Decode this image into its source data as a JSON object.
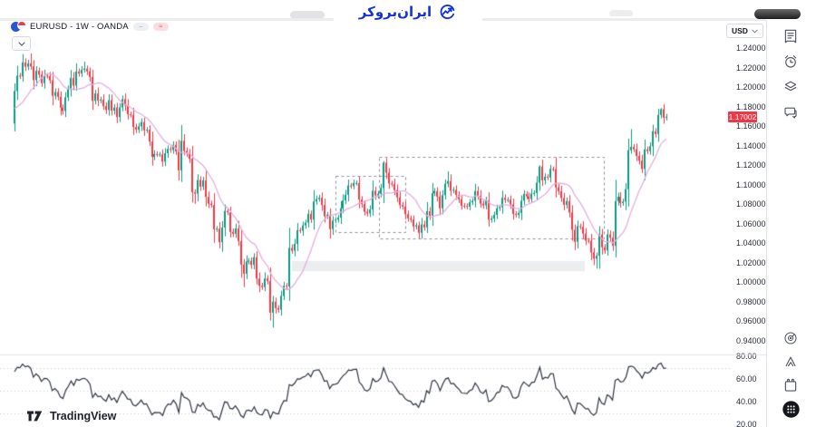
{
  "header": {
    "symbol_title": "EURUSD - 1W - OANDA",
    "brand_text": "ایران‌بروکر",
    "currency": "USD",
    "badges": [
      "–",
      "≈"
    ]
  },
  "footer": {
    "brand": "TradingView"
  },
  "price_axis": {
    "current_price": "1.17002",
    "labels": [
      "1.24000",
      "1.22000",
      "1.20000",
      "1.18000",
      "1.16000",
      "1.14000",
      "1.12000",
      "1.10000",
      "1.08000",
      "1.06000",
      "1.04000",
      "1.02000",
      "1.00000",
      "0.98000",
      "0.96000",
      "0.94000"
    ],
    "values": [
      1.24,
      1.22,
      1.2,
      1.18,
      1.16,
      1.14,
      1.12,
      1.1,
      1.08,
      1.06,
      1.04,
      1.02,
      1.0,
      0.98,
      0.96,
      0.94
    ]
  },
  "rsi_axis": {
    "labels": [
      "80.00",
      "60.00",
      "40.00",
      "20.00"
    ],
    "values": [
      80,
      60,
      40,
      20
    ],
    "dashed_levels": [
      70,
      50,
      30
    ]
  },
  "toolbar": {
    "top_icons": [
      "watchlist-icon",
      "alerts-clock-icon",
      "layers-icon",
      "chat-icon"
    ],
    "bottom_icons": [
      "gauge-icon",
      "ideas-mountain-icon",
      "calendar-icon",
      "apps-grid-icon"
    ]
  },
  "chart_data": {
    "type": "candlestick",
    "symbol": "EURUSD",
    "timeframe": "1W",
    "venue": "OANDA",
    "title": "EURUSD - 1W - OANDA",
    "ylabel": "USD",
    "ylim": [
      0.93,
      1.25
    ],
    "grid": false,
    "legend_position": "hidden",
    "indicators": {
      "ma_period": 13,
      "rsi_period": 14
    },
    "first_open": 1.163,
    "pre_closes": [
      1.1422,
      1.1402,
      1.1302,
      1.128,
      1.165,
      1.1774,
      1.1785,
      1.1755,
      1.1856,
      1.1837,
      1.194,
      1.172,
      1.1744,
      1.1647,
      1.1718,
      1.1783,
      1.164,
      1.1636,
      1.1818,
      1.1873
    ],
    "closes": [
      1.1963,
      1.2121,
      1.2114,
      1.2257,
      1.2214,
      1.2247,
      1.2216,
      1.2076,
      1.2171,
      1.2133,
      1.2045,
      1.212,
      1.2117,
      1.2074,
      1.1915,
      1.1953,
      1.1904,
      1.1793,
      1.176,
      1.1899,
      1.1981,
      1.2097,
      1.202,
      1.2163,
      1.2144,
      1.2181,
      1.2193,
      1.2166,
      1.2108,
      1.1863,
      1.1938,
      1.1865,
      1.1876,
      1.1808,
      1.177,
      1.187,
      1.1763,
      1.1795,
      1.1697,
      1.1795,
      1.188,
      1.1814,
      1.1725,
      1.1719,
      1.1595,
      1.1567,
      1.1601,
      1.1646,
      1.156,
      1.1567,
      1.1445,
      1.1289,
      1.1318,
      1.1313,
      1.1313,
      1.1239,
      1.1325,
      1.1369,
      1.1359,
      1.1411,
      1.1343,
      1.115,
      1.1452,
      1.1349,
      1.1324,
      1.1269,
      1.0926,
      1.0911,
      1.1051,
      1.0983,
      1.1047,
      1.0877,
      1.0808,
      1.0794,
      1.0545,
      1.0551,
      1.0413,
      1.0563,
      1.0733,
      1.0719,
      1.0518,
      1.0498,
      1.0553,
      1.0425,
      1.0183,
      1.0089,
      1.0214,
      1.0222,
      1.018,
      1.0258,
      1.0039,
      0.9965,
      0.9952,
      1.004,
      1.0015,
      0.969,
      0.9802,
      0.9737,
      0.9721,
      0.9861,
      0.9965,
      0.9958,
      1.0353,
      1.0325,
      1.0395,
      1.0535,
      1.0531,
      1.0585,
      1.0613,
      1.0703,
      1.0645,
      1.083,
      1.0855,
      1.0869,
      1.0794,
      1.0679,
      1.0694,
      1.0547,
      1.0634,
      1.0643,
      1.0665,
      1.076,
      1.0841,
      1.09,
      1.0994,
      1.0988,
      1.1019,
      1.102,
      1.085,
      1.0805,
      1.0724,
      1.0708,
      1.0748,
      1.0939,
      1.0893,
      1.091,
      1.0968,
      1.1228,
      1.1126,
      1.1015,
      1.1009,
      1.0947,
      1.0873,
      1.0794,
      1.0779,
      1.07,
      1.0658,
      1.0645,
      1.0573,
      1.0586,
      1.0509,
      1.0594,
      1.0565,
      1.073,
      1.0685,
      1.0915,
      1.0936,
      1.0882,
      1.0761,
      1.0895,
      1.1012,
      1.1039,
      1.0941,
      1.095,
      1.0897,
      1.0854,
      1.0787,
      1.0784,
      1.0777,
      1.0821,
      1.0837,
      1.0937,
      1.0888,
      1.0808,
      1.079,
      1.0838,
      1.0643,
      1.0656,
      1.0693,
      1.076,
      1.0771,
      1.0868,
      1.0846,
      1.0849,
      1.0801,
      1.0703,
      1.0692,
      1.0713,
      1.0838,
      1.0907,
      1.0883,
      1.0856,
      1.0911,
      1.0917,
      1.1024,
      1.119,
      1.1048,
      1.1084,
      1.1076,
      1.1164,
      1.1163,
      1.0976,
      1.0936,
      1.0866,
      1.0796,
      1.0834,
      1.0718,
      1.054,
      1.0417,
      1.0577,
      1.0569,
      1.0501,
      1.043,
      1.0427,
      1.0308,
      1.0244,
      1.0273,
      1.0492,
      1.0361,
      1.0328,
      1.0492,
      1.0459,
      1.0375,
      1.0834,
      1.0879,
      1.0815,
      1.0829,
      1.0957,
      1.1355,
      1.139,
      1.1366,
      1.1298,
      1.1249,
      1.1164,
      1.1364,
      1.1347,
      1.1397,
      1.1551,
      1.1522,
      1.1718,
      1.1777,
      1.169,
      1.17
    ],
    "extremes": {
      "6": {
        "h": 1.2349
      },
      "26": {
        "h": 1.2266
      },
      "67": {
        "l": 1.0806
      },
      "76": {
        "l": 1.0349
      },
      "85": {
        "l": 0.9952
      },
      "91": {
        "l": 0.99
      },
      "95": {
        "l": 0.961
      },
      "96": {
        "l": 0.9536
      },
      "137": {
        "h": 1.1245
      },
      "138": {
        "h": 1.1275
      },
      "150": {
        "l": 1.0448
      },
      "161": {
        "h": 1.1139
      },
      "195": {
        "h": 1.1201
      },
      "208": {
        "l": 1.0332
      },
      "215": {
        "l": 1.0177
      },
      "216": {
        "l": 1.0141
      },
      "229": {
        "h": 1.1573
      },
      "240": {
        "h": 1.1789
      },
      "241": {
        "h": 1.183
      }
    },
    "annotations": {
      "boxes": [
        {
          "x1": 370,
          "x2": 447,
          "price_top": 1.1095,
          "price_bottom": 1.0515
        },
        {
          "x1": 418,
          "x2": 666,
          "price_top": 1.129,
          "price_bottom": 1.045
        }
      ],
      "support_zone": {
        "x1": 322,
        "x2": 645,
        "price_top": 1.022,
        "price_bottom": 1.0115
      }
    },
    "colors": {
      "up": "#089981",
      "down": "#f23645",
      "ma": "#e4aede",
      "rsi_line": "#2f3440",
      "badge": "#f23645",
      "dash": "#8f929c",
      "zone": "rgba(160,163,172,0.20)",
      "separator": "#e0e3eb",
      "brand_blue": "#1535d3"
    }
  }
}
